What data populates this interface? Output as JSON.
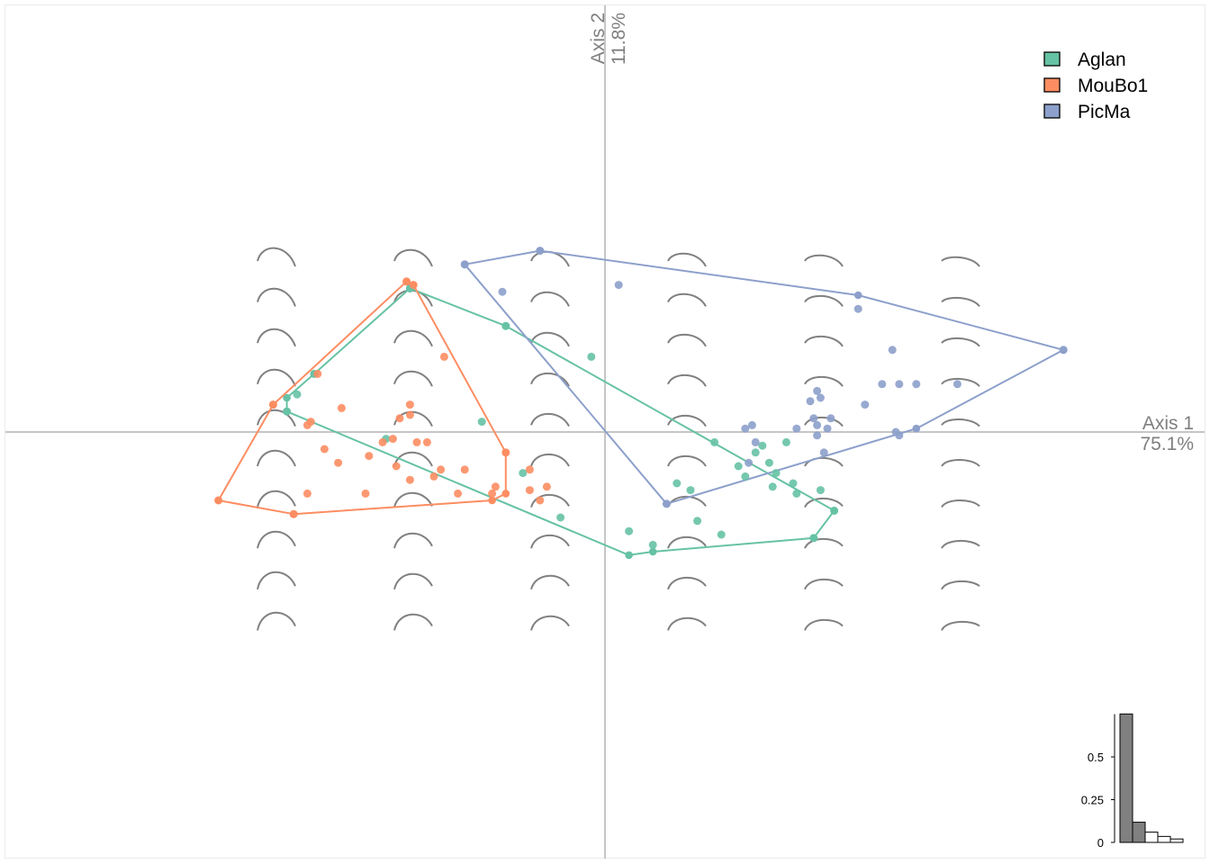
{
  "chart_data": {
    "type": "scatter",
    "axes": {
      "x": {
        "label": "Axis 1",
        "variance": "75.1%"
      },
      "y": {
        "label": "Axis 2",
        "variance": "11.8%"
      }
    },
    "xlim": [
      -13.5,
      13.5
    ],
    "ylim": [
      -10.8,
      10.8
    ],
    "grid": false,
    "legend_position": "top-right",
    "legend": [
      "Aglan",
      "MouBo1",
      "PicMa"
    ],
    "series": [
      {
        "name": "Aglan",
        "color": "#66c2a5",
        "points": [
          [
            -5.7,
            4.2
          ],
          [
            -2.9,
            3.1
          ],
          [
            -8.5,
            1.7
          ],
          [
            -9.0,
            1.1
          ],
          [
            -9.3,
            0.6
          ],
          [
            -6.4,
            -0.2
          ],
          [
            -0.4,
            2.2
          ],
          [
            -3.6,
            0.3
          ],
          [
            -2.4,
            -1.2
          ],
          [
            -1.3,
            -2.5
          ],
          [
            3.2,
            -0.3
          ],
          [
            4.6,
            -0.4
          ],
          [
            4.4,
            -0.6
          ],
          [
            5.3,
            -0.3
          ],
          [
            4.8,
            -0.9
          ],
          [
            4.1,
            -1.3
          ],
          [
            3.9,
            -1.0
          ],
          [
            5.0,
            -1.2
          ],
          [
            2.1,
            -1.5
          ],
          [
            2.5,
            -1.7
          ],
          [
            4.9,
            -1.6
          ],
          [
            5.5,
            -1.5
          ],
          [
            5.6,
            -1.8
          ],
          [
            6.3,
            -1.7
          ],
          [
            6.7,
            -2.3
          ],
          [
            2.7,
            -2.6
          ],
          [
            0.7,
            -2.9
          ],
          [
            1.4,
            -3.3
          ],
          [
            3.4,
            -3.0
          ],
          [
            6.1,
            -3.1
          ]
        ],
        "hull": [
          [
            -5.7,
            4.2
          ],
          [
            -2.9,
            3.1
          ],
          [
            6.7,
            -2.3
          ],
          [
            6.1,
            -3.1
          ],
          [
            1.4,
            -3.5
          ],
          [
            0.7,
            -3.6
          ],
          [
            -9.3,
            0.6
          ],
          [
            -9.3,
            1.0
          ],
          [
            -8.5,
            1.7
          ],
          [
            -5.7,
            4.2
          ]
        ]
      },
      {
        "name": "MouBo1",
        "color": "#fc8d62",
        "points": [
          [
            -5.8,
            4.4
          ],
          [
            -5.6,
            4.3
          ],
          [
            -4.7,
            2.2
          ],
          [
            -8.4,
            1.7
          ],
          [
            -9.7,
            0.8
          ],
          [
            -5.7,
            0.8
          ],
          [
            -7.7,
            0.7
          ],
          [
            -5.7,
            0.5
          ],
          [
            -8.6,
            0.3
          ],
          [
            -8.7,
            0.2
          ],
          [
            -6.0,
            0.4
          ],
          [
            -6.2,
            -0.2
          ],
          [
            -5.2,
            -0.3
          ],
          [
            -5.5,
            -0.3
          ],
          [
            -6.5,
            -0.3
          ],
          [
            -6.9,
            -0.7
          ],
          [
            -8.2,
            -0.5
          ],
          [
            -7.8,
            -0.9
          ],
          [
            -6.1,
            -1.0
          ],
          [
            -4.8,
            -1.1
          ],
          [
            -5.0,
            -1.3
          ],
          [
            -2.9,
            -0.6
          ],
          [
            -3.3,
            -1.8
          ],
          [
            -4.3,
            -1.8
          ],
          [
            -7.0,
            -1.8
          ],
          [
            -5.7,
            -1.4
          ],
          [
            -4.1,
            -1.1
          ],
          [
            -2.2,
            -1.1
          ],
          [
            -2.2,
            -1.7
          ],
          [
            -1.9,
            -2.0
          ],
          [
            -1.7,
            -1.6
          ],
          [
            -8.7,
            -1.8
          ],
          [
            -11.3,
            -2.0
          ],
          [
            -9.1,
            -2.4
          ],
          [
            -3.2,
            -1.6
          ]
        ],
        "hull": [
          [
            -5.8,
            4.4
          ],
          [
            -5.6,
            4.3
          ],
          [
            -2.9,
            -0.6
          ],
          [
            -2.9,
            -1.8
          ],
          [
            -3.3,
            -2.0
          ],
          [
            -9.1,
            -2.4
          ],
          [
            -11.3,
            -2.0
          ],
          [
            -9.7,
            0.8
          ],
          [
            -5.8,
            4.4
          ]
        ]
      },
      {
        "name": "PicMa",
        "color": "#8da0cb",
        "points": [
          [
            -4.1,
            4.9
          ],
          [
            -1.9,
            5.3
          ],
          [
            -3.0,
            4.1
          ],
          [
            0.4,
            4.3
          ],
          [
            7.4,
            3.6
          ],
          [
            8.4,
            2.4
          ],
          [
            13.4,
            2.4
          ],
          [
            8.1,
            1.4
          ],
          [
            8.6,
            1.4
          ],
          [
            9.1,
            1.4
          ],
          [
            10.3,
            1.4
          ],
          [
            6.2,
            1.2
          ],
          [
            6.3,
            1.0
          ],
          [
            6.0,
            0.9
          ],
          [
            6.1,
            0.4
          ],
          [
            6.6,
            0.4
          ],
          [
            7.6,
            0.8
          ],
          [
            6.2,
            0.2
          ],
          [
            6.5,
            0.1
          ],
          [
            5.6,
            0.1
          ],
          [
            4.3,
            0.2
          ],
          [
            4.1,
            0.1
          ],
          [
            8.5,
            0.0
          ],
          [
            6.2,
            -0.1
          ],
          [
            4.4,
            -0.3
          ],
          [
            4.2,
            -0.9
          ],
          [
            8.6,
            -0.1
          ],
          [
            6.4,
            -0.6
          ],
          [
            1.8,
            -2.1
          ]
        ],
        "hull": [
          [
            -4.1,
            4.9
          ],
          [
            -1.9,
            5.3
          ],
          [
            7.4,
            4.0
          ],
          [
            13.4,
            2.4
          ],
          [
            9.1,
            0.1
          ],
          [
            1.8,
            -2.1
          ],
          [
            -4.1,
            4.9
          ]
        ]
      }
    ],
    "scree": {
      "eigenvalues": [
        0.751,
        0.118,
        0.06,
        0.035,
        0.02
      ],
      "highlighted": 2,
      "ticks": [
        "0",
        "0.25",
        "0.5"
      ]
    }
  }
}
